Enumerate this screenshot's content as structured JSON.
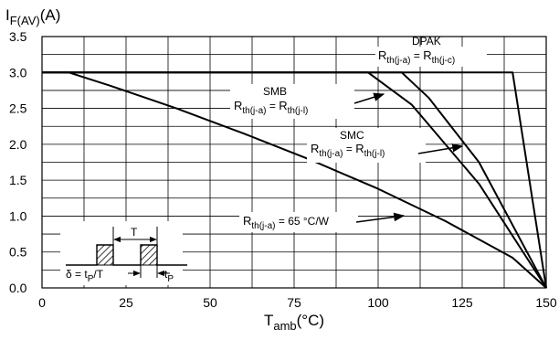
{
  "chart_data": {
    "type": "line",
    "title": "",
    "ylabel": {
      "main": "I",
      "sub": "F(AV)",
      "unit": "(A)"
    },
    "xlabel": {
      "main": "T",
      "sub": "amb",
      "unit": "(°C)"
    },
    "xlim": [
      0,
      150
    ],
    "ylim": [
      0,
      3.5
    ],
    "xticks": [
      0,
      25,
      50,
      75,
      100,
      125,
      150
    ],
    "xtick_labels": [
      "0",
      "25",
      "50",
      "75",
      "100",
      "125",
      "150"
    ],
    "yticks": [
      0,
      0.5,
      1.0,
      1.5,
      2.0,
      2.5,
      3.0,
      3.5
    ],
    "ytick_labels": [
      "0.0",
      "0.5",
      "1.0",
      "1.5",
      "2.0",
      "2.5",
      "3.0",
      "3.5"
    ],
    "grid": true,
    "series": [
      {
        "x": [
          0,
          8,
          20,
          40,
          60,
          80,
          100,
          120,
          140,
          150
        ],
        "y": [
          3.0,
          3.0,
          2.82,
          2.5,
          2.15,
          1.78,
          1.38,
          0.93,
          0.42,
          0.0
        ]
      },
      {
        "x": [
          0,
          97,
          110,
          130,
          150
        ],
        "y": [
          3.0,
          3.0,
          2.55,
          1.45,
          0.0
        ]
      },
      {
        "x": [
          0,
          107,
          115,
          130,
          150
        ],
        "y": [
          3.0,
          3.0,
          2.65,
          1.75,
          0.0
        ]
      },
      {
        "x": [
          0,
          140,
          150
        ],
        "y": [
          3.0,
          3.0,
          0.0
        ]
      }
    ],
    "annotations": [
      {
        "id": "dpak",
        "title": "DPAK",
        "eq": {
          "a": "R",
          "as": "th(j-a)",
          "eqs": " = ",
          "b": "R",
          "bs": "th(j-c)"
        }
      },
      {
        "id": "smb",
        "title": "SMB",
        "eq": {
          "a": "R",
          "as": "th(j-a)",
          "eqs": " = ",
          "b": "R",
          "bs": "th(j-l)"
        }
      },
      {
        "id": "smc",
        "title": "SMC",
        "eq": {
          "a": "R",
          "as": "th(j-a)",
          "eqs": " = ",
          "b": "R",
          "bs": "th(j-l)"
        }
      },
      {
        "id": "r65",
        "title": "",
        "eq": {
          "a": "R",
          "as": "th(j-a)",
          "eqs": " = 65 °C/W",
          "b": "",
          "bs": ""
        }
      }
    ],
    "inset": {
      "period": "T",
      "duty": {
        "a": "δ = t",
        "as": "P",
        "b": "/T"
      },
      "pulse": {
        "a": "t",
        "as": "P"
      }
    }
  }
}
